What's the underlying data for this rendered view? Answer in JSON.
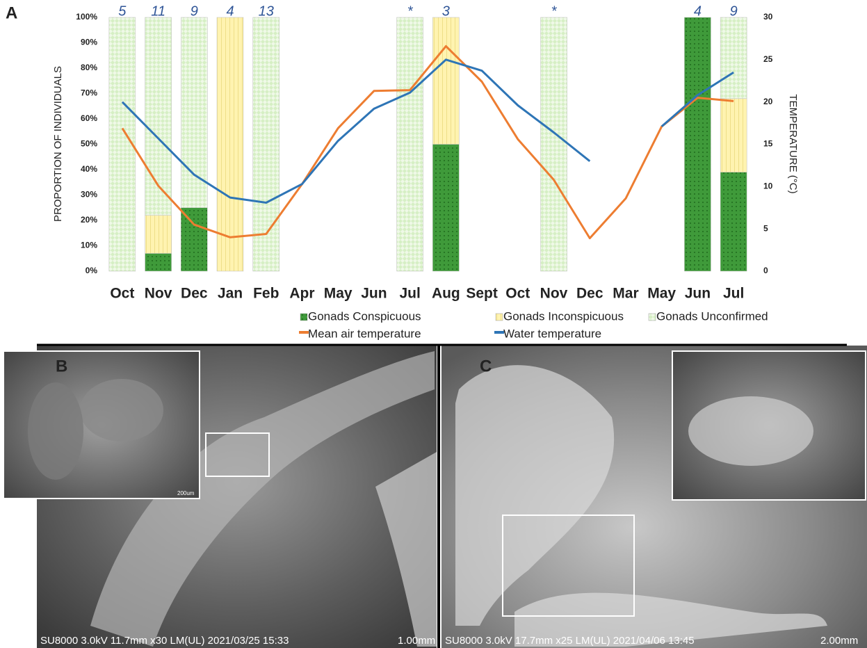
{
  "chart_data": {
    "type": "bar",
    "panel_label": "A",
    "categories": [
      "Oct",
      "Nov",
      "Dec",
      "Jan",
      "Feb",
      "Apr",
      "May",
      "Jun",
      "Jul",
      "Aug",
      "Sept",
      "Oct",
      "Nov",
      "Dec",
      "Mar",
      "May",
      "Jun",
      "Jul"
    ],
    "sample_sizes": [
      5,
      11,
      9,
      4,
      13,
      null,
      null,
      null,
      "*",
      3,
      null,
      null,
      "*",
      null,
      null,
      null,
      4,
      9
    ],
    "y_label": "PROPORTION OF INDIVIDUALS",
    "y2_label": "TEMPERATURE (°C)",
    "ylim": [
      0,
      100
    ],
    "yticks": [
      {
        "value": 0,
        "label": "0%"
      },
      {
        "value": 10,
        "label": "10%"
      },
      {
        "value": 20,
        "label": "20%"
      },
      {
        "value": 30,
        "label": "30%"
      },
      {
        "value": 40,
        "label": "40%"
      },
      {
        "value": 50,
        "label": "50%"
      },
      {
        "value": 60,
        "label": "60%"
      },
      {
        "value": 70,
        "label": "70%"
      },
      {
        "value": 80,
        "label": "80%"
      },
      {
        "value": 90,
        "label": "90%"
      },
      {
        "value": 100,
        "label": "100%"
      }
    ],
    "y2lim": [
      0,
      30
    ],
    "y2ticks": [
      0,
      5,
      10,
      15,
      20,
      25,
      30
    ],
    "series": [
      {
        "name": "Gonads Conspicuous",
        "type": "bar",
        "color": "#3f9a3a",
        "values": [
          null,
          7,
          25,
          null,
          null,
          null,
          null,
          null,
          null,
          50,
          null,
          null,
          null,
          null,
          null,
          null,
          100,
          39
        ]
      },
      {
        "name": "Gonads Inconspicuous",
        "type": "bar",
        "color": "#fff3b0",
        "values": [
          null,
          15,
          null,
          100,
          null,
          null,
          null,
          null,
          null,
          50,
          null,
          null,
          null,
          null,
          null,
          null,
          null,
          29
        ]
      },
      {
        "name": "Gonads Unconfirmed",
        "type": "bar",
        "color": "#d6efc4",
        "values": [
          100,
          78,
          75,
          null,
          100,
          null,
          null,
          null,
          100,
          null,
          null,
          null,
          100,
          null,
          null,
          null,
          null,
          32
        ]
      },
      {
        "name": "Mean air temperature",
        "type": "line",
        "axis": "y2",
        "color": "#ed7d31",
        "values": [
          16.9,
          10.1,
          5.5,
          4.0,
          4.4,
          10.3,
          16.9,
          21.3,
          21.4,
          26.6,
          22.4,
          15.6,
          10.8,
          3.9,
          8.6,
          17.1,
          20.5,
          20.1
        ]
      },
      {
        "name": "Water temperature",
        "type": "line",
        "axis": "y2",
        "color": "#2e75b6",
        "values": [
          20.0,
          15.7,
          11.4,
          8.7,
          8.1,
          10.3,
          15.4,
          19.2,
          21.1,
          25.0,
          23.7,
          19.6,
          16.4,
          13.0,
          null,
          17.1,
          20.8,
          23.5
        ]
      }
    ]
  },
  "panels": [
    {
      "label": "B",
      "caption": "SU8000 3.0kV 11.7mm x30 LM(UL) 2021/03/25 15:33",
      "scale": "1.00mm",
      "inset_scale": "200um"
    },
    {
      "label": "C",
      "caption": "SU8000 3.0kV 17.7mm x25 LM(UL) 2021/04/06 13:45",
      "scale": "2.00mm"
    }
  ]
}
